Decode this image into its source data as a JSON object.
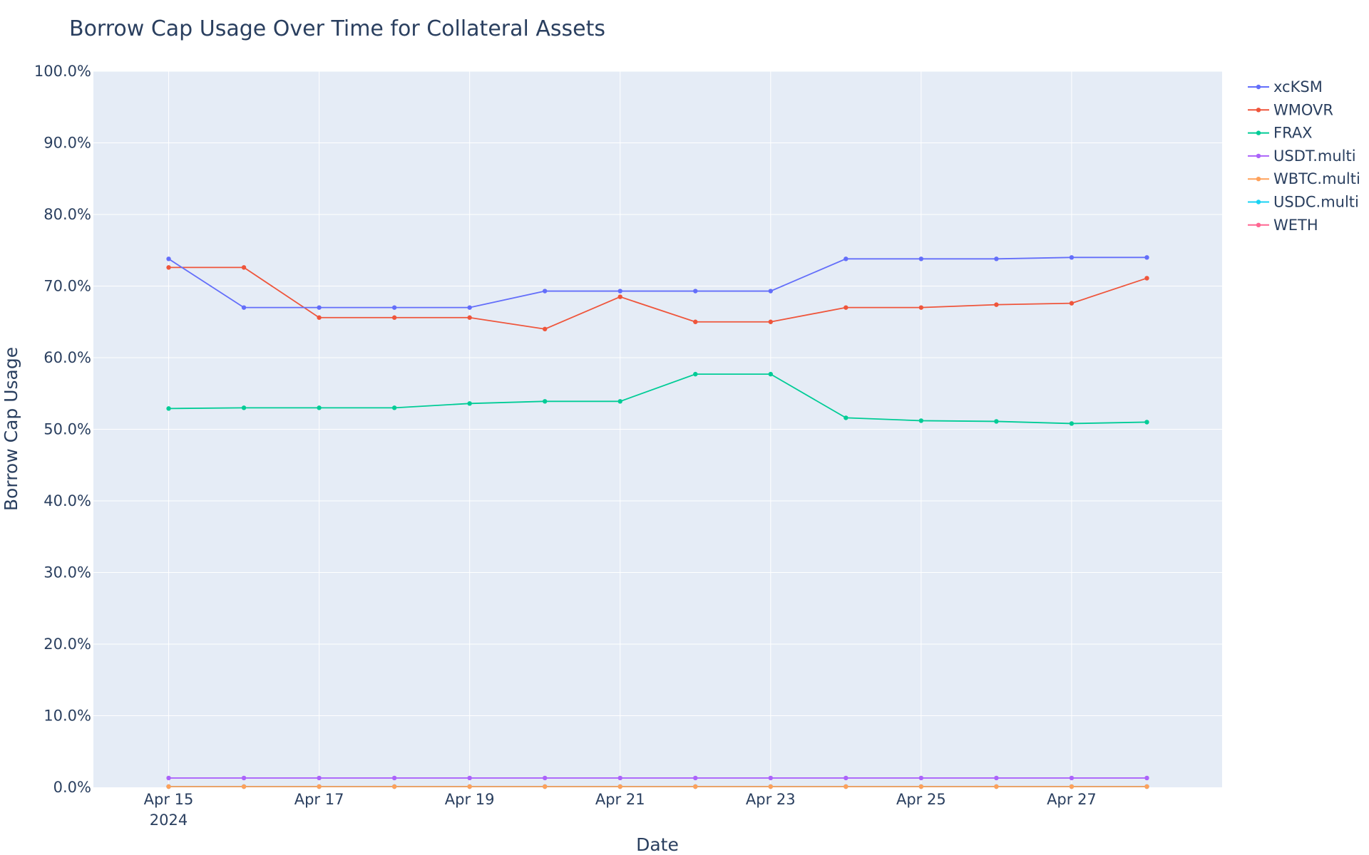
{
  "chart_data": {
    "type": "line",
    "title": "Borrow Cap Usage Over Time for Collateral Assets",
    "xlabel": "Date",
    "ylabel": "Borrow Cap Usage",
    "x": [
      "2024-04-15",
      "2024-04-16",
      "2024-04-17",
      "2024-04-18",
      "2024-04-19",
      "2024-04-20",
      "2024-04-21",
      "2024-04-22",
      "2024-04-23",
      "2024-04-24",
      "2024-04-25",
      "2024-04-26",
      "2024-04-27",
      "2024-04-28"
    ],
    "x_tick_labels": [
      "Apr 15",
      "Apr 17",
      "Apr 19",
      "Apr 21",
      "Apr 23",
      "Apr 25",
      "Apr 27"
    ],
    "x_tick_dates": [
      "2024-04-15",
      "2024-04-17",
      "2024-04-19",
      "2024-04-21",
      "2024-04-23",
      "2024-04-25",
      "2024-04-27"
    ],
    "x_year_label": "2024",
    "xlim": [
      "2024-04-14",
      "2024-04-29"
    ],
    "ylim": [
      0,
      100
    ],
    "y_tick_labels": [
      "0.0%",
      "10.0%",
      "20.0%",
      "30.0%",
      "40.0%",
      "50.0%",
      "60.0%",
      "70.0%",
      "80.0%",
      "90.0%",
      "100.0%"
    ],
    "y_ticks": [
      0,
      10,
      20,
      30,
      40,
      50,
      60,
      70,
      80,
      90,
      100
    ],
    "grid": true,
    "legend_position": "top-right",
    "plot_bg": "#e5ecf6",
    "series": [
      {
        "name": "xcKSM",
        "color": "#636efa",
        "values": [
          73.8,
          67.0,
          67.0,
          67.0,
          67.0,
          69.3,
          69.3,
          69.3,
          69.3,
          73.8,
          73.8,
          73.8,
          74.0,
          74.0
        ]
      },
      {
        "name": "WMOVR",
        "color": "#ef553b",
        "values": [
          72.6,
          72.6,
          65.6,
          65.6,
          65.6,
          64.0,
          68.5,
          65.0,
          65.0,
          67.0,
          67.0,
          67.4,
          67.6,
          71.1
        ]
      },
      {
        "name": "FRAX",
        "color": "#00cc96",
        "values": [
          52.9,
          53.0,
          53.0,
          53.0,
          53.6,
          53.9,
          53.9,
          57.7,
          57.7,
          51.6,
          51.2,
          51.1,
          50.8,
          51.0
        ]
      },
      {
        "name": "USDT.multi",
        "color": "#ab63fa",
        "values": [
          1.3,
          1.3,
          1.3,
          1.3,
          1.3,
          1.3,
          1.3,
          1.3,
          1.3,
          1.3,
          1.3,
          1.3,
          1.3,
          1.3
        ]
      },
      {
        "name": "WBTC.multi",
        "color": "#ffa15a",
        "values": [
          0.1,
          0.1,
          0.1,
          0.1,
          0.1,
          0.1,
          0.1,
          0.1,
          0.1,
          0.1,
          0.1,
          0.1,
          0.1,
          0.1
        ]
      },
      {
        "name": "USDC.multi",
        "color": "#19d3f3",
        "values": [
          0.1,
          0.1,
          0.1,
          0.1,
          0.1,
          0.1,
          0.1,
          0.1,
          0.1,
          0.1,
          0.1,
          0.1,
          0.1,
          0.1
        ]
      },
      {
        "name": "WETH",
        "color": "#ff6692",
        "values": [
          0.1,
          0.1,
          0.1,
          0.1,
          0.1,
          0.1,
          0.1,
          0.1,
          0.1,
          0.1,
          0.1,
          0.1,
          0.1,
          0.1
        ]
      }
    ]
  }
}
